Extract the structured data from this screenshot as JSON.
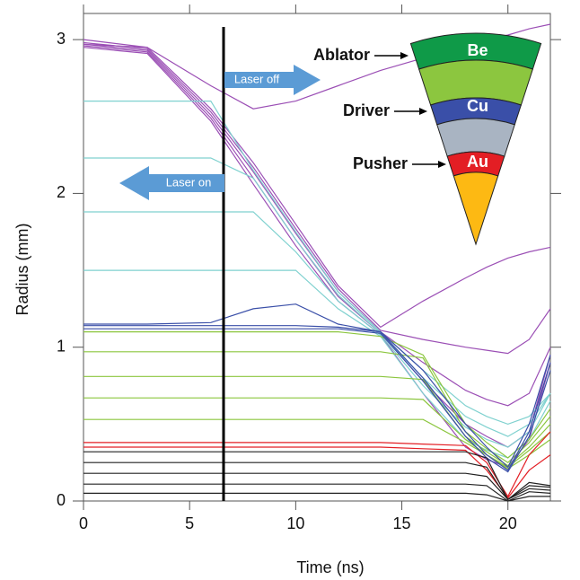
{
  "chart_data": {
    "type": "line",
    "xlabel": "Time (ns)",
    "ylabel": "Radius (mm)",
    "xlim": [
      0,
      22
    ],
    "ylim": [
      0,
      3.17
    ],
    "xticks": [
      0,
      5,
      10,
      15,
      20
    ],
    "yticks": [
      0,
      1,
      2,
      3
    ],
    "vline": 6.6,
    "annotations": {
      "laser_off": "Laser off",
      "laser_on": "Laser on"
    },
    "inset": {
      "labels": [
        "Ablator",
        "Driver",
        "Pusher"
      ],
      "layers": [
        "Be",
        "Cu",
        "Au"
      ]
    },
    "x": [
      0,
      3,
      6,
      8,
      10,
      12,
      14,
      16,
      18,
      19,
      20,
      21,
      22
    ],
    "series": [
      {
        "color": "#9b4fb5",
        "values": [
          2.97,
          2.95,
          2.7,
          2.55,
          2.6,
          2.7,
          2.8,
          2.88,
          2.95,
          3.0,
          3.03,
          3.07,
          3.1
        ]
      },
      {
        "color": "#9b4fb5",
        "values": [
          3.0,
          2.95,
          2.55,
          2.2,
          1.8,
          1.4,
          1.13,
          1.3,
          1.45,
          1.52,
          1.58,
          1.62,
          1.65
        ]
      },
      {
        "color": "#9b4fb5",
        "values": [
          2.98,
          2.94,
          2.53,
          2.17,
          1.77,
          1.38,
          1.11,
          1.05,
          1.0,
          0.98,
          0.96,
          1.05,
          1.25
        ]
      },
      {
        "color": "#9b4fb5",
        "values": [
          2.97,
          2.93,
          2.51,
          2.14,
          1.74,
          1.36,
          1.1,
          0.9,
          0.72,
          0.66,
          0.62,
          0.7,
          1.0
        ]
      },
      {
        "color": "#9b4fb5",
        "values": [
          2.96,
          2.92,
          2.49,
          2.1,
          1.7,
          1.33,
          1.09,
          0.78,
          0.5,
          0.42,
          0.35,
          0.45,
          0.95
        ]
      },
      {
        "color": "#9b4fb5",
        "values": [
          2.95,
          2.91,
          2.47,
          2.06,
          1.66,
          1.3,
          1.08,
          0.7,
          0.35,
          0.27,
          0.22,
          0.4,
          0.9
        ]
      },
      {
        "color": "#7fd1cf",
        "values": [
          2.6,
          2.6,
          2.6,
          2.15,
          1.75,
          1.36,
          1.1,
          0.85,
          0.62,
          0.55,
          0.5,
          0.55,
          0.7
        ]
      },
      {
        "color": "#7fd1cf",
        "values": [
          2.23,
          2.23,
          2.23,
          2.1,
          1.7,
          1.34,
          1.09,
          0.8,
          0.55,
          0.48,
          0.42,
          0.5,
          0.7
        ]
      },
      {
        "color": "#7fd1cf",
        "values": [
          1.88,
          1.88,
          1.88,
          1.88,
          1.62,
          1.3,
          1.08,
          0.75,
          0.48,
          0.4,
          0.35,
          0.45,
          0.7
        ]
      },
      {
        "color": "#7fd1cf",
        "values": [
          1.5,
          1.5,
          1.5,
          1.5,
          1.5,
          1.25,
          1.07,
          0.7,
          0.4,
          0.33,
          0.28,
          0.4,
          0.65
        ]
      },
      {
        "color": "#8cc63f",
        "values": [
          1.1,
          1.1,
          1.1,
          1.1,
          1.1,
          1.1,
          1.07,
          0.95,
          0.5,
          0.38,
          0.28,
          0.4,
          0.6
        ]
      },
      {
        "color": "#8cc63f",
        "values": [
          0.97,
          0.97,
          0.97,
          0.97,
          0.97,
          0.97,
          0.97,
          0.93,
          0.45,
          0.34,
          0.25,
          0.38,
          0.55
        ]
      },
      {
        "color": "#8cc63f",
        "values": [
          0.81,
          0.81,
          0.81,
          0.81,
          0.81,
          0.81,
          0.81,
          0.79,
          0.42,
          0.32,
          0.23,
          0.35,
          0.5
        ]
      },
      {
        "color": "#8cc63f",
        "values": [
          0.67,
          0.67,
          0.67,
          0.67,
          0.67,
          0.67,
          0.67,
          0.66,
          0.4,
          0.3,
          0.22,
          0.33,
          0.45
        ]
      },
      {
        "color": "#8cc63f",
        "values": [
          0.53,
          0.53,
          0.53,
          0.53,
          0.53,
          0.53,
          0.53,
          0.53,
          0.38,
          0.3,
          0.21,
          0.3,
          0.4
        ]
      },
      {
        "color": "#3a4fa8",
        "values": [
          1.15,
          1.15,
          1.16,
          1.25,
          1.28,
          1.15,
          1.1,
          0.85,
          0.5,
          0.35,
          0.22,
          0.5,
          0.95
        ]
      },
      {
        "color": "#3a4fa8",
        "values": [
          1.14,
          1.14,
          1.14,
          1.14,
          1.14,
          1.13,
          1.1,
          0.8,
          0.45,
          0.3,
          0.2,
          0.45,
          0.9
        ]
      },
      {
        "color": "#3a4fa8",
        "values": [
          1.12,
          1.12,
          1.12,
          1.12,
          1.12,
          1.12,
          1.09,
          0.78,
          0.42,
          0.28,
          0.19,
          0.42,
          0.85
        ]
      },
      {
        "color": "#e31e24",
        "values": [
          0.38,
          0.38,
          0.38,
          0.38,
          0.38,
          0.38,
          0.38,
          0.37,
          0.36,
          0.25,
          0.03,
          0.3,
          0.45
        ]
      },
      {
        "color": "#e31e24",
        "values": [
          0.35,
          0.35,
          0.35,
          0.35,
          0.35,
          0.35,
          0.35,
          0.34,
          0.33,
          0.2,
          0.02,
          0.2,
          0.3
        ]
      },
      {
        "color": "#222222",
        "values": [
          0.32,
          0.32,
          0.32,
          0.32,
          0.32,
          0.32,
          0.32,
          0.32,
          0.32,
          0.28,
          0.01,
          0.12,
          0.1
        ]
      },
      {
        "color": "#222222",
        "values": [
          0.25,
          0.25,
          0.25,
          0.25,
          0.25,
          0.25,
          0.25,
          0.25,
          0.25,
          0.22,
          0.01,
          0.1,
          0.09
        ]
      },
      {
        "color": "#222222",
        "values": [
          0.18,
          0.18,
          0.18,
          0.18,
          0.18,
          0.18,
          0.18,
          0.18,
          0.18,
          0.16,
          0.01,
          0.08,
          0.07
        ]
      },
      {
        "color": "#222222",
        "values": [
          0.11,
          0.11,
          0.11,
          0.11,
          0.11,
          0.11,
          0.11,
          0.11,
          0.11,
          0.1,
          0.0,
          0.06,
          0.05
        ]
      },
      {
        "color": "#222222",
        "values": [
          0.05,
          0.05,
          0.05,
          0.05,
          0.05,
          0.05,
          0.05,
          0.05,
          0.05,
          0.04,
          0.0,
          0.03,
          0.03
        ]
      }
    ]
  }
}
